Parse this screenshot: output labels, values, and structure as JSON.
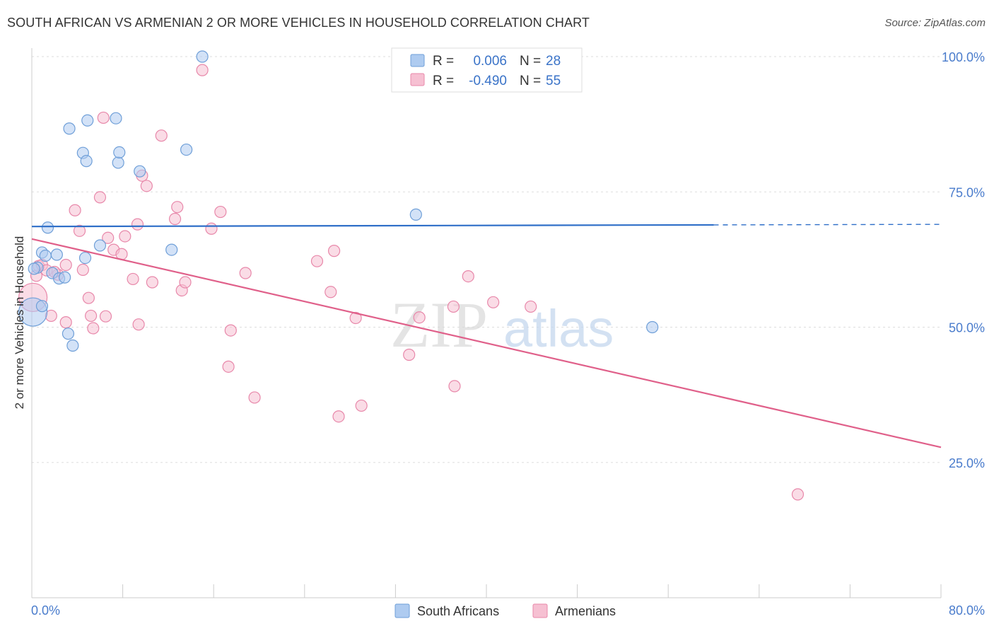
{
  "header": {
    "title": "SOUTH AFRICAN VS ARMENIAN 2 OR MORE VEHICLES IN HOUSEHOLD CORRELATION CHART",
    "source": "Source: ZipAtlas.com"
  },
  "watermark": {
    "zip": "ZIP",
    "atlas": "atlas"
  },
  "legend_box": {
    "rows": [
      {
        "r_label": "R =",
        "r_value": "0.006",
        "n_label": "N =",
        "n_value": "28"
      },
      {
        "r_label": "R =",
        "r_value": "-0.490",
        "n_label": "N =",
        "n_value": "55"
      }
    ]
  },
  "bottom_legend": {
    "items": [
      "South Africans",
      "Armenians"
    ]
  },
  "colors": {
    "blue_fill": "#aecbf0",
    "blue_stroke": "#6f9fd8",
    "blue_line": "#2f6fc8",
    "pink_fill": "#f6c0d2",
    "pink_stroke": "#e888aa",
    "pink_line": "#e0608a",
    "tick_text": "#4a7ccc",
    "grid": "#dddddd"
  },
  "chart_data": {
    "type": "scatter",
    "title": "SOUTH AFRICAN VS ARMENIAN 2 OR MORE VEHICLES IN HOUSEHOLD CORRELATION CHART",
    "xlabel": "",
    "ylabel": "2 or more Vehicles in Household",
    "xlim": [
      0,
      80
    ],
    "ylim": [
      0,
      105
    ],
    "x_tick_labels": [
      "0.0%",
      "80.0%"
    ],
    "y_ticks": [
      25,
      50,
      75,
      100
    ],
    "y_tick_labels": [
      "25.0%",
      "50.0%",
      "75.0%",
      "100.0%"
    ],
    "grid": "horizontal dashed",
    "series": [
      {
        "name": "South Africans",
        "color": "#aecbf0",
        "points": [
          [
            0.1,
            52.8
          ],
          [
            0.5,
            61.0
          ],
          [
            0.9,
            63.8
          ],
          [
            0.9,
            53.9
          ],
          [
            1.2,
            63.2
          ],
          [
            1.4,
            68.4
          ],
          [
            1.8,
            60.0
          ],
          [
            2.2,
            63.4
          ],
          [
            2.4,
            59.0
          ],
          [
            2.9,
            59.2
          ],
          [
            3.3,
            86.7
          ],
          [
            3.2,
            48.8
          ],
          [
            3.6,
            46.6
          ],
          [
            4.5,
            82.2
          ],
          [
            4.7,
            62.8
          ],
          [
            4.8,
            80.7
          ],
          [
            4.9,
            88.2
          ],
          [
            6.0,
            65.1
          ],
          [
            7.4,
            88.6
          ],
          [
            7.6,
            80.4
          ],
          [
            7.7,
            82.3
          ],
          [
            9.5,
            78.8
          ],
          [
            12.3,
            64.3
          ],
          [
            13.6,
            82.8
          ],
          [
            15.0,
            100.0
          ],
          [
            33.8,
            70.8
          ],
          [
            54.6,
            50.0
          ],
          [
            0.2,
            60.8
          ]
        ],
        "trend": {
          "x": [
            0,
            60
          ],
          "y": [
            68.6,
            68.9
          ],
          "dashed_extension_to_x": 80
        }
      },
      {
        "name": "Armenians",
        "color": "#f6c0d2",
        "points": [
          [
            0.1,
            55.5
          ],
          [
            0.4,
            59.5
          ],
          [
            0.6,
            61.3
          ],
          [
            0.9,
            61.5
          ],
          [
            1.3,
            60.5
          ],
          [
            1.7,
            52.1
          ],
          [
            2.3,
            59.7
          ],
          [
            3.0,
            50.9
          ],
          [
            3.8,
            71.6
          ],
          [
            4.2,
            67.8
          ],
          [
            4.5,
            60.6
          ],
          [
            5.0,
            55.4
          ],
          [
            5.2,
            52.1
          ],
          [
            5.4,
            49.8
          ],
          [
            6.0,
            74.0
          ],
          [
            6.3,
            88.7
          ],
          [
            6.5,
            52.0
          ],
          [
            6.7,
            66.5
          ],
          [
            7.2,
            64.3
          ],
          [
            7.9,
            63.5
          ],
          [
            8.2,
            66.8
          ],
          [
            8.9,
            58.9
          ],
          [
            9.3,
            69.0
          ],
          [
            9.4,
            50.5
          ],
          [
            9.7,
            78.0
          ],
          [
            10.1,
            76.1
          ],
          [
            10.6,
            58.3
          ],
          [
            11.4,
            85.4
          ],
          [
            12.6,
            70.0
          ],
          [
            12.8,
            72.2
          ],
          [
            13.2,
            56.8
          ],
          [
            13.5,
            58.3
          ],
          [
            15.0,
            97.5
          ],
          [
            15.8,
            68.2
          ],
          [
            16.6,
            71.3
          ],
          [
            17.3,
            42.7
          ],
          [
            17.5,
            49.4
          ],
          [
            18.8,
            60.0
          ],
          [
            19.6,
            37.0
          ],
          [
            25.1,
            62.2
          ],
          [
            26.3,
            56.5
          ],
          [
            26.6,
            64.1
          ],
          [
            27.0,
            33.5
          ],
          [
            28.5,
            51.7
          ],
          [
            29.0,
            35.5
          ],
          [
            33.2,
            44.9
          ],
          [
            34.1,
            51.8
          ],
          [
            37.1,
            53.8
          ],
          [
            37.2,
            39.1
          ],
          [
            38.4,
            59.4
          ],
          [
            40.6,
            54.6
          ],
          [
            43.9,
            53.8
          ],
          [
            67.4,
            19.1
          ],
          [
            3.0,
            61.5
          ],
          [
            2.0,
            60.2
          ]
        ],
        "trend": {
          "x": [
            0,
            80
          ],
          "y": [
            66.3,
            27.8
          ]
        }
      }
    ],
    "legend": "top-center inset box and bottom-center"
  }
}
